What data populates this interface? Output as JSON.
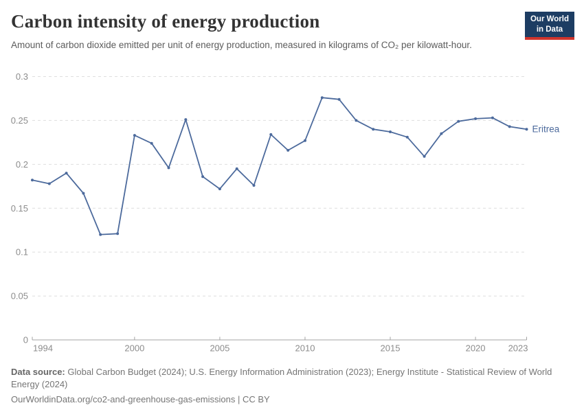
{
  "header": {
    "title": "Carbon intensity of energy production",
    "subtitle": "Amount of carbon dioxide emitted per unit of energy production, measured in kilograms of CO₂ per kilowatt-hour.",
    "logo": {
      "line1": "Our World",
      "line2": "in Data"
    }
  },
  "chart_data": {
    "type": "line",
    "title": "Carbon intensity of energy production",
    "xlabel": "",
    "ylabel": "",
    "x": [
      1994,
      1995,
      1996,
      1997,
      1998,
      1999,
      2000,
      2001,
      2002,
      2003,
      2004,
      2005,
      2006,
      2007,
      2008,
      2009,
      2010,
      2011,
      2012,
      2013,
      2014,
      2015,
      2016,
      2017,
      2018,
      2019,
      2020,
      2021,
      2022,
      2023
    ],
    "series": [
      {
        "name": "Eritrea",
        "color": "#4c6a9c",
        "values": [
          0.182,
          0.178,
          0.19,
          0.167,
          0.12,
          0.121,
          0.233,
          0.224,
          0.196,
          0.251,
          0.186,
          0.172,
          0.195,
          0.176,
          0.234,
          0.216,
          0.227,
          0.276,
          0.274,
          0.25,
          0.24,
          0.237,
          0.231,
          0.209,
          0.235,
          0.249,
          0.252,
          0.253,
          0.243,
          0.24
        ]
      }
    ],
    "ylim": [
      0,
      0.3
    ],
    "yticks": [
      0,
      0.05,
      0.1,
      0.15,
      0.2,
      0.25,
      0.3
    ],
    "ytick_labels": [
      "0",
      "0.05",
      "0.1",
      "0.15",
      "0.2",
      "0.25",
      "0.3"
    ],
    "xticks": [
      1994,
      2000,
      2005,
      2010,
      2015,
      2020,
      2023
    ],
    "grid": "horizontal-dashed",
    "legend_position": "end-of-line-label"
  },
  "footer": {
    "source_label": "Data source:",
    "source_text": "Global Carbon Budget (2024); U.S. Energy Information Administration (2023); Energy Institute - Statistical Review of World Energy (2024)",
    "license_line": "OurWorldinData.org/co2-and-greenhouse-gas-emissions | CC BY"
  },
  "colors": {
    "line": "#4c6a9c",
    "grid": "#dedede",
    "axis": "#a3a3a3",
    "tick_text": "#8c8c8c",
    "logo_bg": "#1d3d63",
    "logo_accent": "#d0342c"
  }
}
